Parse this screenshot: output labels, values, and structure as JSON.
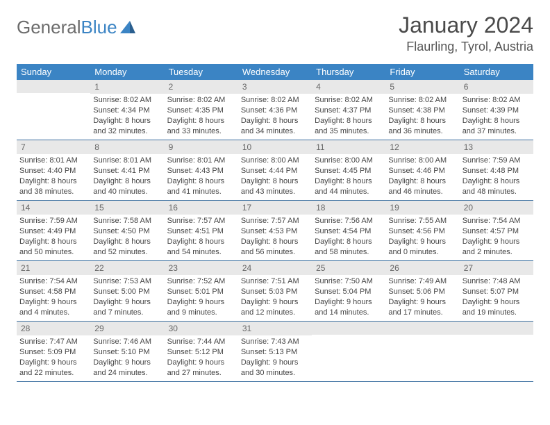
{
  "logo": {
    "text_gray": "General",
    "text_blue": "Blue"
  },
  "header": {
    "month_title": "January 2024",
    "location": "Flaurling, Tyrol, Austria"
  },
  "weekdays": [
    "Sunday",
    "Monday",
    "Tuesday",
    "Wednesday",
    "Thursday",
    "Friday",
    "Saturday"
  ],
  "colors": {
    "header_bg": "#3b84c4",
    "header_text": "#ffffff",
    "daynum_bg": "#e8e8e8",
    "row_border": "#3b6fa0",
    "logo_gray": "#6b6b6b",
    "logo_blue": "#3b84c4"
  },
  "weeks": [
    [
      {
        "num": "",
        "lines": []
      },
      {
        "num": "1",
        "lines": [
          "Sunrise: 8:02 AM",
          "Sunset: 4:34 PM",
          "Daylight: 8 hours and 32 minutes."
        ]
      },
      {
        "num": "2",
        "lines": [
          "Sunrise: 8:02 AM",
          "Sunset: 4:35 PM",
          "Daylight: 8 hours and 33 minutes."
        ]
      },
      {
        "num": "3",
        "lines": [
          "Sunrise: 8:02 AM",
          "Sunset: 4:36 PM",
          "Daylight: 8 hours and 34 minutes."
        ]
      },
      {
        "num": "4",
        "lines": [
          "Sunrise: 8:02 AM",
          "Sunset: 4:37 PM",
          "Daylight: 8 hours and 35 minutes."
        ]
      },
      {
        "num": "5",
        "lines": [
          "Sunrise: 8:02 AM",
          "Sunset: 4:38 PM",
          "Daylight: 8 hours and 36 minutes."
        ]
      },
      {
        "num": "6",
        "lines": [
          "Sunrise: 8:02 AM",
          "Sunset: 4:39 PM",
          "Daylight: 8 hours and 37 minutes."
        ]
      }
    ],
    [
      {
        "num": "7",
        "lines": [
          "Sunrise: 8:01 AM",
          "Sunset: 4:40 PM",
          "Daylight: 8 hours and 38 minutes."
        ]
      },
      {
        "num": "8",
        "lines": [
          "Sunrise: 8:01 AM",
          "Sunset: 4:41 PM",
          "Daylight: 8 hours and 40 minutes."
        ]
      },
      {
        "num": "9",
        "lines": [
          "Sunrise: 8:01 AM",
          "Sunset: 4:43 PM",
          "Daylight: 8 hours and 41 minutes."
        ]
      },
      {
        "num": "10",
        "lines": [
          "Sunrise: 8:00 AM",
          "Sunset: 4:44 PM",
          "Daylight: 8 hours and 43 minutes."
        ]
      },
      {
        "num": "11",
        "lines": [
          "Sunrise: 8:00 AM",
          "Sunset: 4:45 PM",
          "Daylight: 8 hours and 44 minutes."
        ]
      },
      {
        "num": "12",
        "lines": [
          "Sunrise: 8:00 AM",
          "Sunset: 4:46 PM",
          "Daylight: 8 hours and 46 minutes."
        ]
      },
      {
        "num": "13",
        "lines": [
          "Sunrise: 7:59 AM",
          "Sunset: 4:48 PM",
          "Daylight: 8 hours and 48 minutes."
        ]
      }
    ],
    [
      {
        "num": "14",
        "lines": [
          "Sunrise: 7:59 AM",
          "Sunset: 4:49 PM",
          "Daylight: 8 hours and 50 minutes."
        ]
      },
      {
        "num": "15",
        "lines": [
          "Sunrise: 7:58 AM",
          "Sunset: 4:50 PM",
          "Daylight: 8 hours and 52 minutes."
        ]
      },
      {
        "num": "16",
        "lines": [
          "Sunrise: 7:57 AM",
          "Sunset: 4:51 PM",
          "Daylight: 8 hours and 54 minutes."
        ]
      },
      {
        "num": "17",
        "lines": [
          "Sunrise: 7:57 AM",
          "Sunset: 4:53 PM",
          "Daylight: 8 hours and 56 minutes."
        ]
      },
      {
        "num": "18",
        "lines": [
          "Sunrise: 7:56 AM",
          "Sunset: 4:54 PM",
          "Daylight: 8 hours and 58 minutes."
        ]
      },
      {
        "num": "19",
        "lines": [
          "Sunrise: 7:55 AM",
          "Sunset: 4:56 PM",
          "Daylight: 9 hours and 0 minutes."
        ]
      },
      {
        "num": "20",
        "lines": [
          "Sunrise: 7:54 AM",
          "Sunset: 4:57 PM",
          "Daylight: 9 hours and 2 minutes."
        ]
      }
    ],
    [
      {
        "num": "21",
        "lines": [
          "Sunrise: 7:54 AM",
          "Sunset: 4:58 PM",
          "Daylight: 9 hours and 4 minutes."
        ]
      },
      {
        "num": "22",
        "lines": [
          "Sunrise: 7:53 AM",
          "Sunset: 5:00 PM",
          "Daylight: 9 hours and 7 minutes."
        ]
      },
      {
        "num": "23",
        "lines": [
          "Sunrise: 7:52 AM",
          "Sunset: 5:01 PM",
          "Daylight: 9 hours and 9 minutes."
        ]
      },
      {
        "num": "24",
        "lines": [
          "Sunrise: 7:51 AM",
          "Sunset: 5:03 PM",
          "Daylight: 9 hours and 12 minutes."
        ]
      },
      {
        "num": "25",
        "lines": [
          "Sunrise: 7:50 AM",
          "Sunset: 5:04 PM",
          "Daylight: 9 hours and 14 minutes."
        ]
      },
      {
        "num": "26",
        "lines": [
          "Sunrise: 7:49 AM",
          "Sunset: 5:06 PM",
          "Daylight: 9 hours and 17 minutes."
        ]
      },
      {
        "num": "27",
        "lines": [
          "Sunrise: 7:48 AM",
          "Sunset: 5:07 PM",
          "Daylight: 9 hours and 19 minutes."
        ]
      }
    ],
    [
      {
        "num": "28",
        "lines": [
          "Sunrise: 7:47 AM",
          "Sunset: 5:09 PM",
          "Daylight: 9 hours and 22 minutes."
        ]
      },
      {
        "num": "29",
        "lines": [
          "Sunrise: 7:46 AM",
          "Sunset: 5:10 PM",
          "Daylight: 9 hours and 24 minutes."
        ]
      },
      {
        "num": "30",
        "lines": [
          "Sunrise: 7:44 AM",
          "Sunset: 5:12 PM",
          "Daylight: 9 hours and 27 minutes."
        ]
      },
      {
        "num": "31",
        "lines": [
          "Sunrise: 7:43 AM",
          "Sunset: 5:13 PM",
          "Daylight: 9 hours and 30 minutes."
        ]
      },
      {
        "num": "",
        "lines": []
      },
      {
        "num": "",
        "lines": []
      },
      {
        "num": "",
        "lines": []
      }
    ]
  ]
}
